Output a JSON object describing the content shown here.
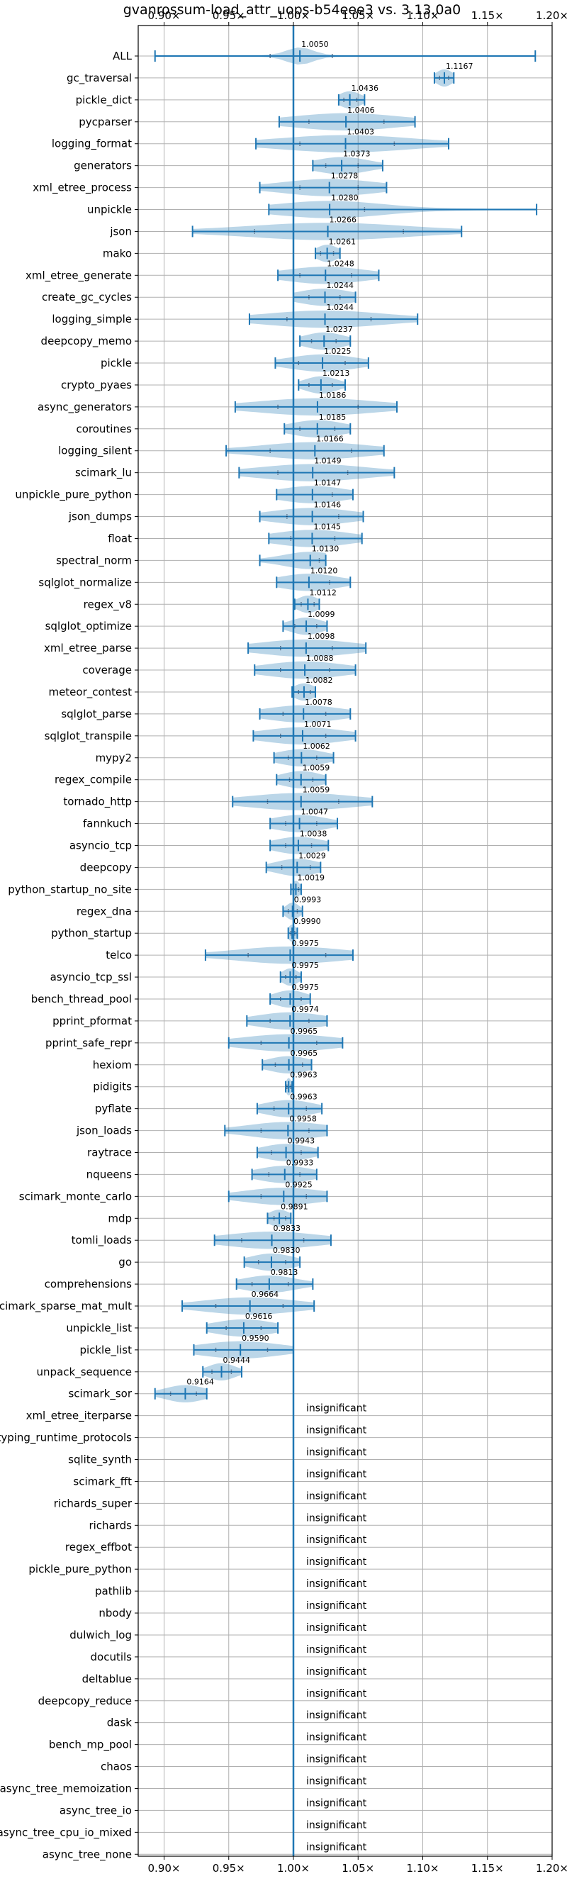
{
  "chart_data": {
    "type": "violin",
    "title": "gvanrossum-load_attr_uops-b54eee3 vs. 3.13.0a0",
    "xlim": [
      0.88,
      1.2
    ],
    "xticks": [
      0.9,
      0.95,
      1.0,
      1.05,
      1.1,
      1.15,
      1.2
    ],
    "xtick_labels": [
      "0.90×",
      "0.95×",
      "1.00×",
      "1.05×",
      "1.10×",
      "1.15×",
      "1.20×"
    ],
    "reference_line": 1.0,
    "grid": true,
    "benchmarks": [
      {
        "name": "ALL",
        "label": "1.0050",
        "median": 1.005,
        "min": 0.893,
        "max": 1.187,
        "q1": 0.982,
        "q3": 1.03,
        "spread": 0.01
      },
      {
        "name": "gc_traversal",
        "label": "1.1167",
        "median": 1.1167,
        "min": 1.109,
        "max": 1.124,
        "q1": 1.113,
        "q3": 1.12,
        "spread": 0.006
      },
      {
        "name": "pickle_dict",
        "label": "1.0436",
        "median": 1.0436,
        "min": 1.035,
        "max": 1.055,
        "q1": 1.039,
        "q3": 1.049,
        "spread": 0.008
      },
      {
        "name": "pycparser",
        "label": "1.0406",
        "median": 1.0406,
        "min": 0.989,
        "max": 1.094,
        "q1": 1.012,
        "q3": 1.07,
        "spread": 0.04
      },
      {
        "name": "logging_format",
        "label": "1.0403",
        "median": 1.0403,
        "min": 0.971,
        "max": 1.12,
        "q1": 1.005,
        "q3": 1.078,
        "spread": 0.05
      },
      {
        "name": "generators",
        "label": "1.0373",
        "median": 1.0373,
        "min": 1.015,
        "max": 1.069,
        "q1": 1.025,
        "q3": 1.05,
        "spread": 0.02
      },
      {
        "name": "xml_etree_process",
        "label": "1.0278",
        "median": 1.0278,
        "min": 0.974,
        "max": 1.072,
        "q1": 1.005,
        "q3": 1.05,
        "spread": 0.035
      },
      {
        "name": "unpickle",
        "label": "1.0280",
        "median": 1.028,
        "min": 0.981,
        "max": 1.188,
        "q1": 1.0,
        "q3": 1.055,
        "spread": 0.04
      },
      {
        "name": "json",
        "label": "1.0266",
        "median": 1.0266,
        "min": 0.922,
        "max": 1.13,
        "q1": 0.97,
        "q3": 1.085,
        "spread": 0.06
      },
      {
        "name": "mako",
        "label": "1.0261",
        "median": 1.0261,
        "min": 1.017,
        "max": 1.036,
        "q1": 1.021,
        "q3": 1.031,
        "spread": 0.008
      },
      {
        "name": "xml_etree_generate",
        "label": "1.0248",
        "median": 1.0248,
        "min": 0.988,
        "max": 1.066,
        "q1": 1.005,
        "q3": 1.045,
        "spread": 0.03
      },
      {
        "name": "create_gc_cycles",
        "label": "1.0244",
        "median": 1.0244,
        "min": 1.0,
        "max": 1.048,
        "q1": 1.012,
        "q3": 1.036,
        "spread": 0.02
      },
      {
        "name": "logging_simple",
        "label": "1.0244",
        "median": 1.0244,
        "min": 0.966,
        "max": 1.096,
        "q1": 0.995,
        "q3": 1.06,
        "spread": 0.045
      },
      {
        "name": "deepcopy_memo",
        "label": "1.0237",
        "median": 1.0237,
        "min": 1.005,
        "max": 1.044,
        "q1": 1.014,
        "q3": 1.033,
        "spread": 0.015
      },
      {
        "name": "pickle",
        "label": "1.0225",
        "median": 1.0225,
        "min": 0.986,
        "max": 1.058,
        "q1": 1.004,
        "q3": 1.04,
        "spread": 0.025
      },
      {
        "name": "crypto_pyaes",
        "label": "1.0213",
        "median": 1.0213,
        "min": 1.004,
        "max": 1.04,
        "q1": 1.012,
        "q3": 1.03,
        "spread": 0.012
      },
      {
        "name": "async_generators",
        "label": "1.0186",
        "median": 1.0186,
        "min": 0.955,
        "max": 1.08,
        "q1": 0.988,
        "q3": 1.05,
        "spread": 0.045
      },
      {
        "name": "coroutines",
        "label": "1.0185",
        "median": 1.0185,
        "min": 0.993,
        "max": 1.044,
        "q1": 1.005,
        "q3": 1.032,
        "spread": 0.02
      },
      {
        "name": "logging_silent",
        "label": "1.0166",
        "median": 1.0166,
        "min": 0.948,
        "max": 1.07,
        "q1": 0.982,
        "q3": 1.045,
        "spread": 0.04
      },
      {
        "name": "scimark_lu",
        "label": "1.0149",
        "median": 1.0149,
        "min": 0.958,
        "max": 1.078,
        "q1": 0.988,
        "q3": 1.042,
        "spread": 0.04
      },
      {
        "name": "unpickle_pure_python",
        "label": "1.0147",
        "median": 1.0147,
        "min": 0.987,
        "max": 1.046,
        "q1": 1.0,
        "q3": 1.03,
        "spread": 0.025
      },
      {
        "name": "json_dumps",
        "label": "1.0146",
        "median": 1.0146,
        "min": 0.974,
        "max": 1.054,
        "q1": 0.995,
        "q3": 1.035,
        "spread": 0.03
      },
      {
        "name": "float",
        "label": "1.0145",
        "median": 1.0145,
        "min": 0.981,
        "max": 1.053,
        "q1": 0.998,
        "q3": 1.032,
        "spread": 0.028
      },
      {
        "name": "spectral_norm",
        "label": "1.0130",
        "median": 1.013,
        "min": 0.974,
        "max": 1.025,
        "q1": 1.0,
        "q3": 1.02,
        "spread": 0.02
      },
      {
        "name": "sqlglot_normalize",
        "label": "1.0120",
        "median": 1.012,
        "min": 0.987,
        "max": 1.044,
        "q1": 1.0,
        "q3": 1.028,
        "spread": 0.022
      },
      {
        "name": "regex_v8",
        "label": "1.0112",
        "median": 1.0112,
        "min": 1.001,
        "max": 1.02,
        "q1": 1.006,
        "q3": 1.016,
        "spread": 0.008
      },
      {
        "name": "sqlglot_optimize",
        "label": "1.0099",
        "median": 1.0099,
        "min": 0.992,
        "max": 1.026,
        "q1": 1.001,
        "q3": 1.018,
        "spread": 0.012
      },
      {
        "name": "xml_etree_parse",
        "label": "1.0098",
        "median": 1.0098,
        "min": 0.965,
        "max": 1.056,
        "q1": 0.99,
        "q3": 1.03,
        "spread": 0.035
      },
      {
        "name": "coverage",
        "label": "1.0088",
        "median": 1.0088,
        "min": 0.97,
        "max": 1.048,
        "q1": 0.99,
        "q3": 1.028,
        "spread": 0.03
      },
      {
        "name": "meteor_contest",
        "label": "1.0082",
        "median": 1.0082,
        "min": 0.999,
        "max": 1.017,
        "q1": 1.004,
        "q3": 1.013,
        "spread": 0.008
      },
      {
        "name": "sqlglot_parse",
        "label": "1.0078",
        "median": 1.0078,
        "min": 0.974,
        "max": 1.044,
        "q1": 0.992,
        "q3": 1.025,
        "spread": 0.028
      },
      {
        "name": "sqlglot_transpile",
        "label": "1.0071",
        "median": 1.0071,
        "min": 0.969,
        "max": 1.048,
        "q1": 0.99,
        "q3": 1.025,
        "spread": 0.03
      },
      {
        "name": "mypy2",
        "label": "1.0062",
        "median": 1.0062,
        "min": 0.985,
        "max": 1.031,
        "q1": 0.996,
        "q3": 1.018,
        "spread": 0.018
      },
      {
        "name": "regex_compile",
        "label": "1.0059",
        "median": 1.0059,
        "min": 0.987,
        "max": 1.025,
        "q1": 0.997,
        "q3": 1.015,
        "spread": 0.015
      },
      {
        "name": "tornado_http",
        "label": "1.0059",
        "median": 1.0059,
        "min": 0.953,
        "max": 1.061,
        "q1": 0.98,
        "q3": 1.035,
        "spread": 0.04
      },
      {
        "name": "fannkuch",
        "label": "1.0047",
        "median": 1.0047,
        "min": 0.982,
        "max": 1.034,
        "q1": 0.994,
        "q3": 1.018,
        "spread": 0.02
      },
      {
        "name": "asyncio_tcp",
        "label": "1.0038",
        "median": 1.0038,
        "min": 0.982,
        "max": 1.027,
        "q1": 0.994,
        "q3": 1.014,
        "spread": 0.018
      },
      {
        "name": "deepcopy",
        "label": "1.0029",
        "median": 1.0029,
        "min": 0.979,
        "max": 1.021,
        "q1": 0.991,
        "q3": 1.013,
        "spread": 0.016
      },
      {
        "name": "python_startup_no_site",
        "label": "1.0019",
        "median": 1.0019,
        "min": 0.998,
        "max": 1.006,
        "q1": 1.0,
        "q3": 1.004,
        "spread": 0.003
      },
      {
        "name": "regex_dna",
        "label": "0.9993",
        "median": 0.9993,
        "min": 0.992,
        "max": 1.007,
        "q1": 0.996,
        "q3": 1.003,
        "spread": 0.005
      },
      {
        "name": "python_startup",
        "label": "0.9990",
        "median": 0.999,
        "min": 0.996,
        "max": 1.003,
        "q1": 0.998,
        "q3": 1.001,
        "spread": 0.003
      },
      {
        "name": "telco",
        "label": "0.9975",
        "median": 0.9975,
        "min": 0.932,
        "max": 1.046,
        "q1": 0.965,
        "q3": 1.025,
        "spread": 0.04
      },
      {
        "name": "asyncio_tcp_ssl",
        "label": "0.9975",
        "median": 0.9975,
        "min": 0.99,
        "max": 1.006,
        "q1": 0.994,
        "q3": 1.002,
        "spread": 0.006
      },
      {
        "name": "bench_thread_pool",
        "label": "0.9975",
        "median": 0.9975,
        "min": 0.982,
        "max": 1.013,
        "q1": 0.99,
        "q3": 1.006,
        "spread": 0.012
      },
      {
        "name": "pprint_pformat",
        "label": "0.9974",
        "median": 0.9974,
        "min": 0.964,
        "max": 1.026,
        "q1": 0.982,
        "q3": 1.012,
        "spread": 0.025
      },
      {
        "name": "pprint_safe_repr",
        "label": "0.9965",
        "median": 0.9965,
        "min": 0.95,
        "max": 1.038,
        "q1": 0.975,
        "q3": 1.018,
        "spread": 0.035
      },
      {
        "name": "hexiom",
        "label": "0.9965",
        "median": 0.9965,
        "min": 0.976,
        "max": 1.014,
        "q1": 0.986,
        "q3": 1.007,
        "spread": 0.016
      },
      {
        "name": "pidigits",
        "label": "0.9963",
        "median": 0.9963,
        "min": 0.994,
        "max": 0.999,
        "q1": 0.995,
        "q3": 0.998,
        "spread": 0.002
      },
      {
        "name": "pyflate",
        "label": "0.9963",
        "median": 0.9963,
        "min": 0.972,
        "max": 1.022,
        "q1": 0.985,
        "q3": 1.01,
        "spread": 0.018
      },
      {
        "name": "json_loads",
        "label": "0.9958",
        "median": 0.9958,
        "min": 0.947,
        "max": 1.026,
        "q1": 0.975,
        "q3": 1.012,
        "spread": 0.03
      },
      {
        "name": "raytrace",
        "label": "0.9943",
        "median": 0.9943,
        "min": 0.972,
        "max": 1.019,
        "q1": 0.983,
        "q3": 1.006,
        "spread": 0.018
      },
      {
        "name": "nqueens",
        "label": "0.9933",
        "median": 0.9933,
        "min": 0.968,
        "max": 1.018,
        "q1": 0.981,
        "q3": 1.005,
        "spread": 0.02
      },
      {
        "name": "scimark_monte_carlo",
        "label": "0.9925",
        "median": 0.9925,
        "min": 0.95,
        "max": 1.026,
        "q1": 0.975,
        "q3": 1.01,
        "spread": 0.03
      },
      {
        "name": "mdp",
        "label": "0.9891",
        "median": 0.9891,
        "min": 0.98,
        "max": 0.998,
        "q1": 0.985,
        "q3": 0.994,
        "spread": 0.008
      },
      {
        "name": "tomli_loads",
        "label": "0.9833",
        "median": 0.9833,
        "min": 0.939,
        "max": 1.029,
        "q1": 0.96,
        "q3": 1.008,
        "spread": 0.035
      },
      {
        "name": "go",
        "label": "0.9830",
        "median": 0.983,
        "min": 0.962,
        "max": 1.005,
        "q1": 0.973,
        "q3": 0.994,
        "spread": 0.016
      },
      {
        "name": "comprehensions",
        "label": "0.9813",
        "median": 0.9813,
        "min": 0.956,
        "max": 1.015,
        "q1": 0.968,
        "q3": 0.996,
        "spread": 0.02
      },
      {
        "name": "scimark_sparse_mat_mult",
        "label": "0.9664",
        "median": 0.9664,
        "min": 0.914,
        "max": 1.016,
        "q1": 0.94,
        "q3": 0.992,
        "spread": 0.035
      },
      {
        "name": "unpickle_list",
        "label": "0.9616",
        "median": 0.9616,
        "min": 0.933,
        "max": 0.988,
        "q1": 0.948,
        "q3": 0.975,
        "spread": 0.022
      },
      {
        "name": "pickle_list",
        "label": "0.9590",
        "median": 0.959,
        "min": 0.923,
        "max": 1.0,
        "q1": 0.94,
        "q3": 0.98,
        "spread": 0.03
      },
      {
        "name": "unpack_sequence",
        "label": "0.9444",
        "median": 0.9444,
        "min": 0.93,
        "max": 0.96,
        "q1": 0.937,
        "q3": 0.952,
        "spread": 0.01
      },
      {
        "name": "scimark_sor",
        "label": "0.9164",
        "median": 0.9164,
        "min": 0.893,
        "max": 0.933,
        "q1": 0.905,
        "q3": 0.925,
        "spread": 0.015
      }
    ],
    "insignificant_label": "insignificant",
    "insignificant": [
      "xml_etree_iterparse",
      "typing_runtime_protocols",
      "sqlite_synth",
      "scimark_fft",
      "richards_super",
      "richards",
      "regex_effbot",
      "pickle_pure_python",
      "pathlib",
      "nbody",
      "dulwich_log",
      "docutils",
      "deltablue",
      "deepcopy_reduce",
      "dask",
      "bench_mp_pool",
      "chaos",
      "async_tree_memoization",
      "async_tree_io",
      "async_tree_cpu_io_mixed",
      "async_tree_none"
    ]
  }
}
